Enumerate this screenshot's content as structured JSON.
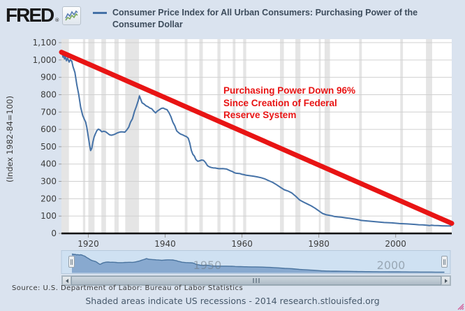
{
  "header": {
    "logo_text": "FRED",
    "logo_reg_mark": "®",
    "legend": {
      "swatch_color": "#4572a7",
      "line1": "Consumer Price Index for All Urban Consumers: Purchasing Power of the",
      "line2": "Consumer Dollar"
    }
  },
  "annotation": {
    "line1": "Purchasing Power Down 96%",
    "line2": "Since Creation of Federal",
    "line3": "Reserve System",
    "color": "#e81414"
  },
  "chart_data": {
    "type": "line",
    "title": "Consumer Price Index for All Urban Consumers: Purchasing Power of the Consumer Dollar",
    "ylabel": "(Index 1982-84=100)",
    "xlim": [
      1913,
      2014.6
    ],
    "ylim": [
      0,
      1100
    ],
    "grid": true,
    "legend_position": "top",
    "x_ticks": [
      1920,
      1940,
      1960,
      1980,
      2000
    ],
    "y_ticks": [
      {
        "value": 0,
        "label": "0"
      },
      {
        "value": 100,
        "label": "100"
      },
      {
        "value": 200,
        "label": "200"
      },
      {
        "value": 300,
        "label": "300"
      },
      {
        "value": 400,
        "label": "400"
      },
      {
        "value": 500,
        "label": "500"
      },
      {
        "value": 600,
        "label": "600"
      },
      {
        "value": 700,
        "label": "700"
      },
      {
        "value": 800,
        "label": "800"
      },
      {
        "value": 900,
        "label": "900"
      },
      {
        "value": 1000,
        "label": "1,000"
      },
      {
        "value": 1100,
        "label": "1,100"
      }
    ],
    "recessions": [
      [
        1913.0,
        1914.95
      ],
      [
        1918.6,
        1919.2
      ],
      [
        1920.0,
        1921.6
      ],
      [
        1923.4,
        1924.6
      ],
      [
        1926.8,
        1927.9
      ],
      [
        1929.6,
        1933.2
      ],
      [
        1937.4,
        1938.5
      ],
      [
        1945.1,
        1945.8
      ],
      [
        1948.9,
        1949.8
      ],
      [
        1953.6,
        1954.4
      ],
      [
        1957.6,
        1958.3
      ],
      [
        1960.3,
        1961.1
      ],
      [
        1969.9,
        1970.9
      ],
      [
        1973.9,
        1975.2
      ],
      [
        1980.0,
        1980.5
      ],
      [
        1981.5,
        1982.9
      ],
      [
        1990.5,
        1991.2
      ],
      [
        2001.2,
        2001.9
      ],
      [
        2007.9,
        2009.5
      ]
    ],
    "series": [
      {
        "name": "Consumer Price Index for All Urban Consumers: Purchasing Power of the Consumer Dollar",
        "color": "#4572a7",
        "points": [
          [
            1913,
            1035
          ],
          [
            1913.2,
            1041
          ],
          [
            1913.4,
            1016
          ],
          [
            1913.6,
            1030
          ],
          [
            1913.8,
            1006
          ],
          [
            1914,
            1021
          ],
          [
            1914.3,
            996
          ],
          [
            1914.6,
            1011
          ],
          [
            1915,
            988
          ],
          [
            1915.3,
            1002
          ],
          [
            1915.7,
            992
          ],
          [
            1916,
            962
          ],
          [
            1916.5,
            928
          ],
          [
            1917,
            858
          ],
          [
            1917.5,
            800
          ],
          [
            1918,
            728
          ],
          [
            1918.5,
            682
          ],
          [
            1919,
            656
          ],
          [
            1919.3,
            642
          ],
          [
            1919.6,
            612
          ],
          [
            1920,
            556
          ],
          [
            1920.3,
            512
          ],
          [
            1920.6,
            478
          ],
          [
            1920.9,
            492
          ],
          [
            1921.2,
            528
          ],
          [
            1921.5,
            556
          ],
          [
            1921.8,
            572
          ],
          [
            1922.2,
            592
          ],
          [
            1922.6,
            601
          ],
          [
            1923,
            597
          ],
          [
            1923.5,
            586
          ],
          [
            1924,
            589
          ],
          [
            1924.5,
            586
          ],
          [
            1925,
            578
          ],
          [
            1925.5,
            569
          ],
          [
            1926,
            566
          ],
          [
            1926.5,
            569
          ],
          [
            1927,
            573
          ],
          [
            1927.5,
            579
          ],
          [
            1928,
            583
          ],
          [
            1928.5,
            586
          ],
          [
            1929,
            585
          ],
          [
            1929.5,
            584
          ],
          [
            1930,
            596
          ],
          [
            1930.5,
            612
          ],
          [
            1931,
            642
          ],
          [
            1931.5,
            662
          ],
          [
            1932,
            702
          ],
          [
            1932.5,
            732
          ],
          [
            1933,
            766
          ],
          [
            1933.3,
            793
          ],
          [
            1933.6,
            776
          ],
          [
            1934,
            753
          ],
          [
            1934.5,
            746
          ],
          [
            1935,
            736
          ],
          [
            1935.5,
            731
          ],
          [
            1936,
            723
          ],
          [
            1936.5,
            719
          ],
          [
            1937,
            706
          ],
          [
            1937.5,
            695
          ],
          [
            1938,
            706
          ],
          [
            1938.5,
            713
          ],
          [
            1939,
            721
          ],
          [
            1939.5,
            723
          ],
          [
            1940,
            717
          ],
          [
            1940.5,
            713
          ],
          [
            1941,
            696
          ],
          [
            1941.5,
            673
          ],
          [
            1942,
            641
          ],
          [
            1942.5,
            621
          ],
          [
            1943,
            591
          ],
          [
            1943.5,
            581
          ],
          [
            1944,
            573
          ],
          [
            1944.5,
            569
          ],
          [
            1945,
            563
          ],
          [
            1945.5,
            559
          ],
          [
            1946,
            549
          ],
          [
            1946.4,
            521
          ],
          [
            1946.8,
            479
          ],
          [
            1947.2,
            456
          ],
          [
            1947.6,
            446
          ],
          [
            1948,
            426
          ],
          [
            1948.5,
            416
          ],
          [
            1949,
            419
          ],
          [
            1949.5,
            423
          ],
          [
            1950,
            421
          ],
          [
            1950.5,
            409
          ],
          [
            1951,
            391
          ],
          [
            1951.5,
            384
          ],
          [
            1952,
            380
          ],
          [
            1952.5,
            378
          ],
          [
            1953,
            377
          ],
          [
            1953.5,
            375
          ],
          [
            1954,
            373
          ],
          [
            1955,
            374
          ],
          [
            1956,
            371
          ],
          [
            1956.5,
            366
          ],
          [
            1957,
            361
          ],
          [
            1957.5,
            357
          ],
          [
            1958,
            350
          ],
          [
            1958.5,
            347
          ],
          [
            1959,
            346
          ],
          [
            1959.5,
            345
          ],
          [
            1960,
            341
          ],
          [
            1960.5,
            339
          ],
          [
            1961,
            336
          ],
          [
            1962,
            333
          ],
          [
            1963,
            330
          ],
          [
            1964,
            326
          ],
          [
            1965,
            321
          ],
          [
            1966,
            314
          ],
          [
            1967,
            304
          ],
          [
            1968,
            294
          ],
          [
            1969,
            281
          ],
          [
            1970,
            266
          ],
          [
            1971,
            252
          ],
          [
            1972,
            244
          ],
          [
            1973,
            233
          ],
          [
            1974,
            214
          ],
          [
            1975,
            193
          ],
          [
            1976,
            181
          ],
          [
            1977,
            170
          ],
          [
            1978,
            159
          ],
          [
            1979,
            146
          ],
          [
            1980,
            130
          ],
          [
            1980.5,
            122
          ],
          [
            1981,
            115
          ],
          [
            1981.5,
            111
          ],
          [
            1982,
            107
          ],
          [
            1982.5,
            105
          ],
          [
            1983,
            103
          ],
          [
            1983.5,
            101
          ],
          [
            1984,
            98
          ],
          [
            1985,
            95
          ],
          [
            1986,
            93
          ],
          [
            1987,
            90
          ],
          [
            1988,
            87
          ],
          [
            1989,
            84
          ],
          [
            1990,
            80
          ],
          [
            1990.5,
            78
          ],
          [
            1991,
            75
          ],
          [
            1992,
            73
          ],
          [
            1993,
            71
          ],
          [
            1994,
            69
          ],
          [
            1995,
            67
          ],
          [
            1996,
            65
          ],
          [
            1997,
            63
          ],
          [
            1998,
            62
          ],
          [
            1999,
            61
          ],
          [
            2000,
            59
          ],
          [
            2001,
            57
          ],
          [
            2002,
            56
          ],
          [
            2003,
            55
          ],
          [
            2004,
            53
          ],
          [
            2005,
            52
          ],
          [
            2006,
            50
          ],
          [
            2007,
            49
          ],
          [
            2008,
            47
          ],
          [
            2008.8,
            45
          ],
          [
            2009.3,
            47
          ],
          [
            2010,
            46
          ],
          [
            2011,
            45
          ],
          [
            2012,
            44
          ],
          [
            2013,
            43
          ],
          [
            2014,
            43
          ],
          [
            2014.5,
            42
          ]
        ]
      }
    ],
    "trend_line": {
      "from": [
        1913,
        1045
      ],
      "to": [
        2014.6,
        58
      ],
      "color": "#e81414",
      "width": 7
    }
  },
  "range_selector": {
    "watermark_left": "1950",
    "watermark_right": "2000"
  },
  "source_line": "Source: U.S. Department of Labor: Bureau of Labor Statistics",
  "footer_line": "Shaded areas indicate US recessions - 2014 research.stlouisfed.org"
}
